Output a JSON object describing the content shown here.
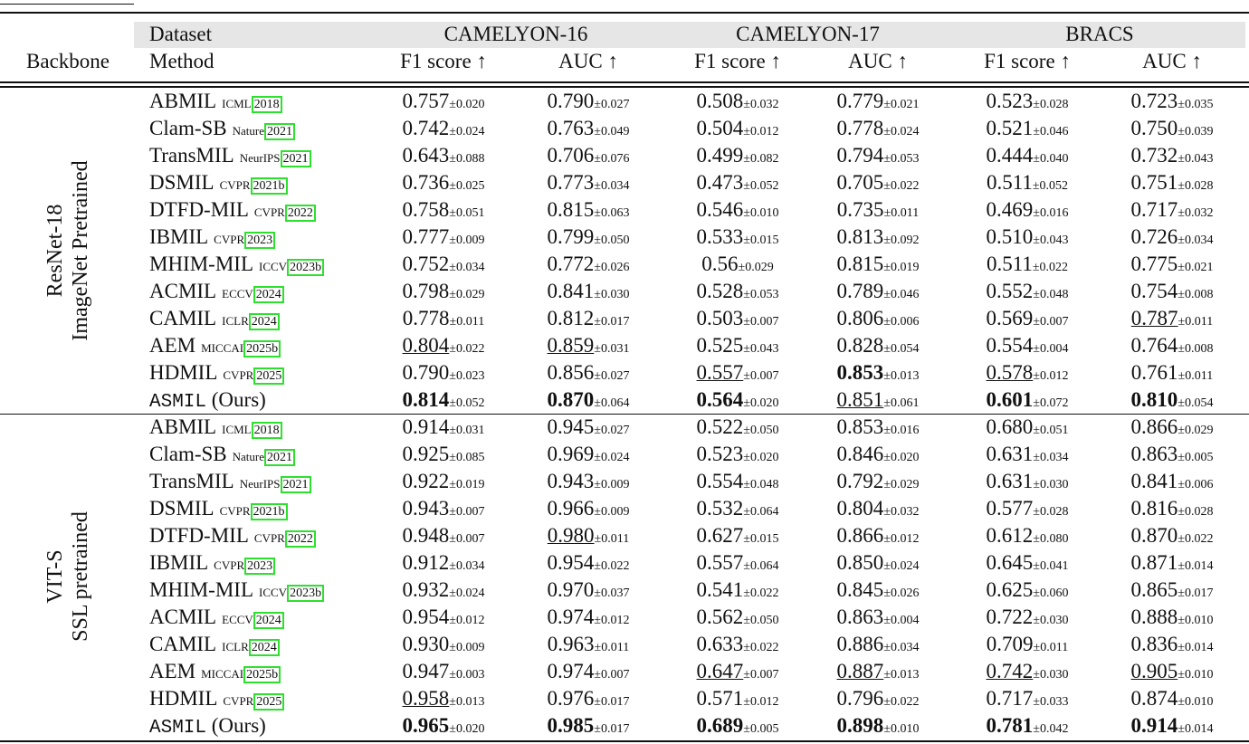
{
  "table": {
    "backbone_label": "Backbone",
    "dataset_label": "Dataset",
    "method_label": "Method",
    "datasets": [
      "CAMELYON-16",
      "CAMELYON-17",
      "BRACS"
    ],
    "metrics": [
      "F1 score ↑",
      "AUC ↑",
      "F1 score ↑",
      "AUC ↑",
      "F1 score ↑",
      "AUC ↑"
    ],
    "groups": [
      {
        "backbone": [
          "ResNet-18",
          "ImageNet Pretrained"
        ],
        "rows": [
          {
            "method": "ABMIL",
            "venue": "ICML",
            "year": "2018",
            "cells": [
              {
                "value": "0.757",
                "std": "±0.020"
              },
              {
                "value": "0.790",
                "std": "±0.027"
              },
              {
                "value": "0.508",
                "std": "±0.032"
              },
              {
                "value": "0.779",
                "std": "±0.021"
              },
              {
                "value": "0.523",
                "std": "±0.028"
              },
              {
                "value": "0.723",
                "std": "±0.035"
              }
            ]
          },
          {
            "method": "Clam-SB",
            "venue": "Nature",
            "year": "2021",
            "cells": [
              {
                "value": "0.742",
                "std": "±0.024"
              },
              {
                "value": "0.763",
                "std": "±0.049"
              },
              {
                "value": "0.504",
                "std": "±0.012"
              },
              {
                "value": "0.778",
                "std": "±0.024"
              },
              {
                "value": "0.521",
                "std": "±0.046"
              },
              {
                "value": "0.750",
                "std": "±0.039"
              }
            ]
          },
          {
            "method": "TransMIL",
            "venue": "NeurIPS",
            "year": "2021",
            "cells": [
              {
                "value": "0.643",
                "std": "±0.088"
              },
              {
                "value": "0.706",
                "std": "±0.076"
              },
              {
                "value": "0.499",
                "std": "±0.082"
              },
              {
                "value": "0.794",
                "std": "±0.053"
              },
              {
                "value": "0.444",
                "std": "±0.040"
              },
              {
                "value": "0.732",
                "std": "±0.043"
              }
            ]
          },
          {
            "method": "DSMIL",
            "venue": "CVPR",
            "year": "2021b",
            "cells": [
              {
                "value": "0.736",
                "std": "±0.025"
              },
              {
                "value": "0.773",
                "std": "±0.034"
              },
              {
                "value": "0.473",
                "std": "±0.052"
              },
              {
                "value": "0.705",
                "std": "±0.022"
              },
              {
                "value": "0.511",
                "std": "±0.052"
              },
              {
                "value": "0.751",
                "std": "±0.028"
              }
            ]
          },
          {
            "method": "DTFD-MIL",
            "venue": "CVPR",
            "year": "2022",
            "cells": [
              {
                "value": "0.758",
                "std": "±0.051"
              },
              {
                "value": "0.815",
                "std": "±0.063"
              },
              {
                "value": "0.546",
                "std": "±0.010"
              },
              {
                "value": "0.735",
                "std": "±0.011"
              },
              {
                "value": "0.469",
                "std": "±0.016"
              },
              {
                "value": "0.717",
                "std": "±0.032"
              }
            ]
          },
          {
            "method": "IBMIL",
            "venue": "CVPR",
            "year": "2023",
            "cells": [
              {
                "value": "0.777",
                "std": "±0.009"
              },
              {
                "value": "0.799",
                "std": "±0.050"
              },
              {
                "value": "0.533",
                "std": "±0.015"
              },
              {
                "value": "0.813",
                "std": "±0.092"
              },
              {
                "value": "0.510",
                "std": "±0.043"
              },
              {
                "value": "0.726",
                "std": "±0.034"
              }
            ]
          },
          {
            "method": "MHIM-MIL",
            "venue": "ICCV",
            "year": "2023b",
            "cells": [
              {
                "value": "0.752",
                "std": "±0.034"
              },
              {
                "value": "0.772",
                "std": "±0.026"
              },
              {
                "value": "0.56",
                "std": "±0.029"
              },
              {
                "value": "0.815",
                "std": "±0.019"
              },
              {
                "value": "0.511",
                "std": "±0.022"
              },
              {
                "value": "0.775",
                "std": "±0.021"
              }
            ]
          },
          {
            "method": "ACMIL",
            "venue": "ECCV",
            "year": "2024",
            "cells": [
              {
                "value": "0.798",
                "std": "±0.029"
              },
              {
                "value": "0.841",
                "std": "±0.030"
              },
              {
                "value": "0.528",
                "std": "±0.053"
              },
              {
                "value": "0.789",
                "std": "±0.046"
              },
              {
                "value": "0.552",
                "std": "±0.048"
              },
              {
                "value": "0.754",
                "std": "±0.008"
              }
            ]
          },
          {
            "method": "CAMIL",
            "venue": "ICLR",
            "year": "2024",
            "cells": [
              {
                "value": "0.778",
                "std": "±0.011"
              },
              {
                "value": "0.812",
                "std": "±0.017"
              },
              {
                "value": "0.503",
                "std": "±0.007"
              },
              {
                "value": "0.806",
                "std": "±0.006"
              },
              {
                "value": "0.569",
                "std": "±0.007"
              },
              {
                "value": "0.787",
                "std": "±0.011",
                "style": "underline"
              }
            ]
          },
          {
            "method": "AEM",
            "venue": "MICCAI",
            "year": "2025b",
            "cells": [
              {
                "value": "0.804",
                "std": "±0.022",
                "style": "underline"
              },
              {
                "value": "0.859",
                "std": "±0.031",
                "style": "underline"
              },
              {
                "value": "0.525",
                "std": "±0.043"
              },
              {
                "value": "0.828",
                "std": "±0.054"
              },
              {
                "value": "0.554",
                "std": "±0.004"
              },
              {
                "value": "0.764",
                "std": "±0.008"
              }
            ]
          },
          {
            "method": "HDMIL",
            "venue": "CVPR",
            "year": "2025",
            "cells": [
              {
                "value": "0.790",
                "std": "±0.023"
              },
              {
                "value": "0.856",
                "std": "±0.027"
              },
              {
                "value": "0.557",
                "std": "±0.007",
                "style": "underline"
              },
              {
                "value": "0.853",
                "std": "±0.013",
                "style": "bold"
              },
              {
                "value": "0.578",
                "std": "±0.012",
                "style": "underline"
              },
              {
                "value": "0.761",
                "std": "±0.011"
              }
            ]
          },
          {
            "method": "ASMIL",
            "suffix": "(Ours)",
            "cells": [
              {
                "value": "0.814",
                "std": "±0.052",
                "style": "bold"
              },
              {
                "value": "0.870",
                "std": "±0.064",
                "style": "bold"
              },
              {
                "value": "0.564",
                "std": "±0.020",
                "style": "bold"
              },
              {
                "value": "0.851",
                "std": "±0.061",
                "style": "underline"
              },
              {
                "value": "0.601",
                "std": "±0.072",
                "style": "bold"
              },
              {
                "value": "0.810",
                "std": "±0.054",
                "style": "bold"
              }
            ]
          }
        ]
      },
      {
        "backbone": [
          "VIT-S",
          "SSL pretrained"
        ],
        "rows": [
          {
            "method": "ABMIL",
            "venue": "ICML",
            "year": "2018",
            "cells": [
              {
                "value": "0.914",
                "std": "±0.031"
              },
              {
                "value": "0.945",
                "std": "±0.027"
              },
              {
                "value": "0.522",
                "std": "±0.050"
              },
              {
                "value": "0.853",
                "std": "±0.016"
              },
              {
                "value": "0.680",
                "std": "±0.051"
              },
              {
                "value": "0.866",
                "std": "±0.029"
              }
            ]
          },
          {
            "method": "Clam-SB",
            "venue": "Nature",
            "year": "2021",
            "cells": [
              {
                "value": "0.925",
                "std": "±0.085"
              },
              {
                "value": "0.969",
                "std": "±0.024"
              },
              {
                "value": "0.523",
                "std": "±0.020"
              },
              {
                "value": "0.846",
                "std": "±0.020"
              },
              {
                "value": "0.631",
                "std": "±0.034"
              },
              {
                "value": "0.863",
                "std": "±0.005"
              }
            ]
          },
          {
            "method": "TransMIL",
            "venue": "NeurIPS",
            "year": "2021",
            "cells": [
              {
                "value": "0.922",
                "std": "±0.019"
              },
              {
                "value": "0.943",
                "std": "±0.009"
              },
              {
                "value": "0.554",
                "std": "±0.048"
              },
              {
                "value": "0.792",
                "std": "±0.029"
              },
              {
                "value": "0.631",
                "std": "±0.030"
              },
              {
                "value": "0.841",
                "std": "±0.006"
              }
            ]
          },
          {
            "method": "DSMIL",
            "venue": "CVPR",
            "year": "2021b",
            "cells": [
              {
                "value": "0.943",
                "std": "±0.007"
              },
              {
                "value": "0.966",
                "std": "±0.009"
              },
              {
                "value": "0.532",
                "std": "±0.064"
              },
              {
                "value": "0.804",
                "std": "±0.032"
              },
              {
                "value": "0.577",
                "std": "±0.028"
              },
              {
                "value": "0.816",
                "std": "±0.028"
              }
            ]
          },
          {
            "method": "DTFD-MIL",
            "venue": "CVPR",
            "year": "2022",
            "cells": [
              {
                "value": "0.948",
                "std": "±0.007"
              },
              {
                "value": "0.980",
                "std": "±0.011",
                "style": "underline"
              },
              {
                "value": "0.627",
                "std": "±0.015"
              },
              {
                "value": "0.866",
                "std": "±0.012"
              },
              {
                "value": "0.612",
                "std": "±0.080"
              },
              {
                "value": "0.870",
                "std": "±0.022"
              }
            ]
          },
          {
            "method": "IBMIL",
            "venue": "CVPR",
            "year": "2023",
            "cells": [
              {
                "value": "0.912",
                "std": "±0.034"
              },
              {
                "value": "0.954",
                "std": "±0.022"
              },
              {
                "value": "0.557",
                "std": "±0.064"
              },
              {
                "value": "0.850",
                "std": "±0.024"
              },
              {
                "value": "0.645",
                "std": "±0.041"
              },
              {
                "value": "0.871",
                "std": "±0.014"
              }
            ]
          },
          {
            "method": "MHIM-MIL",
            "venue": "ICCV",
            "year": "2023b",
            "cells": [
              {
                "value": "0.932",
                "std": "±0.024"
              },
              {
                "value": "0.970",
                "std": "±0.037"
              },
              {
                "value": "0.541",
                "std": "±0.022"
              },
              {
                "value": "0.845",
                "std": "±0.026"
              },
              {
                "value": "0.625",
                "std": "±0.060"
              },
              {
                "value": "0.865",
                "std": "±0.017"
              }
            ]
          },
          {
            "method": "ACMIL",
            "venue": "ECCV",
            "year": "2024",
            "cells": [
              {
                "value": "0.954",
                "std": "±0.012"
              },
              {
                "value": "0.974",
                "std": "±0.012"
              },
              {
                "value": "0.562",
                "std": "±0.050"
              },
              {
                "value": "0.863",
                "std": "±0.004"
              },
              {
                "value": "0.722",
                "std": "±0.030"
              },
              {
                "value": "0.888",
                "std": "±0.010"
              }
            ]
          },
          {
            "method": "CAMIL",
            "venue": "ICLR",
            "year": "2024",
            "cells": [
              {
                "value": "0.930",
                "std": "±0.009"
              },
              {
                "value": "0.963",
                "std": "±0.011"
              },
              {
                "value": "0.633",
                "std": "±0.022"
              },
              {
                "value": "0.886",
                "std": "±0.034"
              },
              {
                "value": "0.709",
                "std": "±0.011"
              },
              {
                "value": "0.836",
                "std": "±0.014"
              }
            ]
          },
          {
            "method": "AEM",
            "venue": "MICCAI",
            "year": "2025b",
            "cells": [
              {
                "value": "0.947",
                "std": "±0.003"
              },
              {
                "value": "0.974",
                "std": "±0.007"
              },
              {
                "value": "0.647",
                "std": "±0.007",
                "style": "underline"
              },
              {
                "value": "0.887",
                "std": "±0.013",
                "style": "underline"
              },
              {
                "value": "0.742",
                "std": "±0.030",
                "style": "underline"
              },
              {
                "value": "0.905",
                "std": "±0.010",
                "style": "underline"
              }
            ]
          },
          {
            "method": "HDMIL",
            "venue": "CVPR",
            "year": "2025",
            "cells": [
              {
                "value": "0.958",
                "std": "±0.013",
                "style": "underline"
              },
              {
                "value": "0.976",
                "std": "±0.017"
              },
              {
                "value": "0.571",
                "std": "±0.012"
              },
              {
                "value": "0.796",
                "std": "±0.022"
              },
              {
                "value": "0.717",
                "std": "±0.033"
              },
              {
                "value": "0.874",
                "std": "±0.010"
              }
            ]
          },
          {
            "method": "ASMIL",
            "suffix": "(Ours)",
            "cells": [
              {
                "value": "0.965",
                "std": "±0.020",
                "style": "bold"
              },
              {
                "value": "0.985",
                "std": "±0.017",
                "style": "bold"
              },
              {
                "value": "0.689",
                "std": "±0.005",
                "style": "bold"
              },
              {
                "value": "0.898",
                "std": "±0.010",
                "style": "bold"
              },
              {
                "value": "0.781",
                "std": "±0.042",
                "style": "bold"
              },
              {
                "value": "0.914",
                "std": "±0.014",
                "style": "bold"
              }
            ]
          }
        ]
      }
    ]
  }
}
